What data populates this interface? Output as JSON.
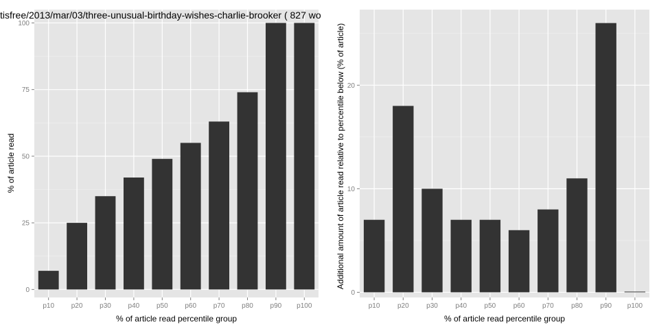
{
  "chart_data": [
    {
      "type": "bar",
      "title": "tisfree/2013/mar/03/three-unusual-birthday-wishes-charlie-brooker ( 827 wo",
      "categories": [
        "p10",
        "p20",
        "p30",
        "p40",
        "p50",
        "p60",
        "p70",
        "p80",
        "p90",
        "p100"
      ],
      "values": [
        7,
        25,
        35,
        42,
        49,
        55,
        63,
        74,
        100,
        100
      ],
      "xlabel": "% of article read percentile group",
      "ylabel": "% of article read",
      "ylim": [
        -3,
        105
      ],
      "yticks": [
        0,
        25,
        50,
        75,
        100
      ],
      "grid": true,
      "legend": "none",
      "bar_color": "#333333",
      "panel_color": "#e5e5e5"
    },
    {
      "type": "bar",
      "title": "",
      "categories": [
        "p10",
        "p20",
        "p30",
        "p40",
        "p50",
        "p60",
        "p70",
        "p80",
        "p90",
        "p100"
      ],
      "values": [
        7,
        18,
        10,
        7,
        7,
        6,
        8,
        11,
        26,
        0
      ],
      "xlabel": "% of article read percentile group",
      "ylabel": "Additional amount of article read relative to percentile below (% of article)",
      "ylim": [
        -0.5,
        27.3
      ],
      "yticks": [
        0,
        10,
        20
      ],
      "grid": true,
      "legend": "none",
      "bar_color": "#333333",
      "panel_color": "#e5e5e5"
    }
  ]
}
